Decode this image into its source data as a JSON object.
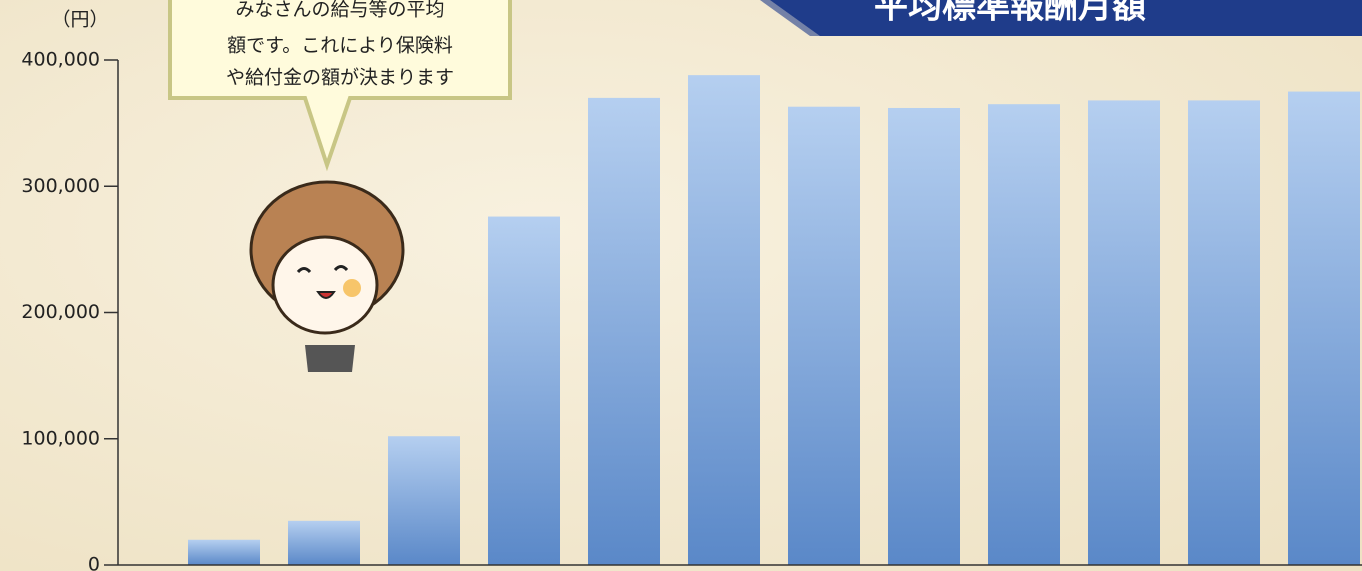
{
  "chart_data": {
    "type": "bar",
    "title": "平均標準報酬月額",
    "ylabel": "（円）",
    "annotations": [
      "みなさんの給与等の平均",
      "額です。これにより保険料",
      "や給付金の額が決まります"
    ],
    "categories": [
      null,
      null,
      null,
      null,
      null,
      null,
      null,
      null,
      null,
      null,
      null,
      null
    ],
    "values": [
      20000,
      35000,
      102000,
      276000,
      370000,
      388000,
      363000,
      362000,
      365000,
      368000,
      368000,
      375000
    ],
    "color": "#6f9ad3",
    "ylim": [
      0,
      400000
    ],
    "yticks": [
      0,
      {
        "value": 100000,
        "label": "100,000"
      },
      {
        "value": 200000,
        "label": "200,000"
      },
      {
        "value": 300000,
        "label": "300,000"
      },
      {
        "value": 400000,
        "label": "400,000"
      }
    ],
    "grid": false
  }
}
